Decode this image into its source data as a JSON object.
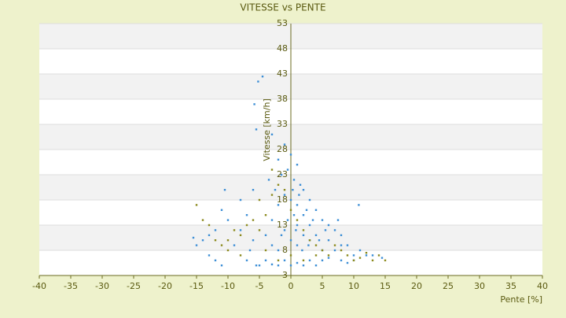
{
  "chart_data": {
    "type": "scatter",
    "title": "VITESSE vs PENTE",
    "x_label": "Pente [%]",
    "y_label": "Vitesse [km/h]",
    "xlim": [
      -40,
      40
    ],
    "xticks": [
      -40,
      -35,
      -30,
      -25,
      -20,
      -15,
      -10,
      -5,
      0,
      5,
      10,
      15,
      20,
      25,
      30,
      35,
      40
    ],
    "ylim": [
      3,
      53
    ],
    "yticks": [
      3,
      8,
      13,
      18,
      23,
      28,
      33,
      38,
      43,
      48,
      53
    ],
    "grid": true,
    "series": [
      {
        "color": "#3d8fd6",
        "x": [
          -4.5,
          -5.2,
          -5.8,
          -5.5,
          -3,
          -1,
          0,
          -2,
          1,
          -0.5,
          0.5,
          1.5,
          2,
          -1,
          0,
          3,
          1,
          -2,
          4,
          2,
          0.5,
          5,
          -3,
          6,
          3,
          1,
          7,
          -1,
          2,
          4,
          8,
          10.8,
          -4,
          0,
          3,
          6,
          9,
          -6,
          1,
          5,
          11,
          12,
          13,
          14.5,
          10,
          7,
          -8,
          -10,
          -11,
          -12,
          -13,
          -14,
          -15,
          -15.5,
          -10.5,
          -8,
          -7,
          -6,
          -9,
          -12,
          -11,
          -13,
          -5,
          -4,
          -2,
          -1,
          0,
          1,
          2,
          3,
          4,
          5,
          6,
          8,
          9,
          10,
          -3,
          -5.5,
          -7,
          -6.5,
          -3.5,
          -2.5,
          -1.5,
          0.3,
          1.3,
          2.5,
          3.5,
          -0.5,
          -1.5,
          0.8,
          1.8,
          2.8,
          4.5,
          5.5,
          -3,
          -2,
          7.5,
          8
        ],
        "values": [
          42.5,
          41.5,
          37,
          32,
          31,
          29,
          27,
          26,
          25,
          24,
          22,
          21,
          20,
          19,
          18,
          18,
          17,
          17,
          16,
          15,
          15,
          14,
          14,
          13,
          13,
          13,
          12,
          12,
          11,
          11,
          11,
          17,
          11,
          10,
          10,
          10,
          9,
          10,
          9,
          8,
          8,
          7,
          7,
          6.5,
          7,
          8,
          12,
          14,
          16,
          12,
          11,
          10,
          9,
          10.5,
          20,
          18,
          15,
          20,
          9,
          6,
          5,
          7,
          5,
          6,
          5,
          6,
          5,
          5.5,
          5,
          6,
          5,
          6,
          6.5,
          6,
          5.5,
          6,
          5.2,
          5,
          6,
          8,
          22,
          20,
          23,
          20,
          19,
          16,
          14,
          14,
          11,
          12,
          8,
          9,
          10,
          12,
          9,
          8,
          14,
          9
        ]
      },
      {
        "color": "#8c8a1e",
        "x": [
          -15,
          -14,
          -13,
          -12,
          -11,
          -10,
          -9,
          -8,
          -7,
          -6,
          -5,
          -4,
          -3,
          -2,
          -1,
          0,
          1,
          2,
          3,
          4,
          5,
          6,
          7,
          8,
          9,
          10,
          11,
          12,
          13,
          14,
          15,
          -4,
          -2,
          0,
          2,
          4,
          -8,
          -10,
          -5,
          -3
        ],
        "values": [
          17,
          14,
          13,
          10,
          9,
          10,
          12,
          11,
          13,
          14,
          18,
          15,
          19,
          21,
          20,
          16,
          14,
          12,
          10,
          9,
          8,
          7,
          9,
          8,
          7,
          6,
          6.5,
          7.5,
          6,
          7,
          6,
          8,
          6,
          7,
          6,
          7,
          7,
          8,
          12,
          24
        ]
      }
    ]
  }
}
